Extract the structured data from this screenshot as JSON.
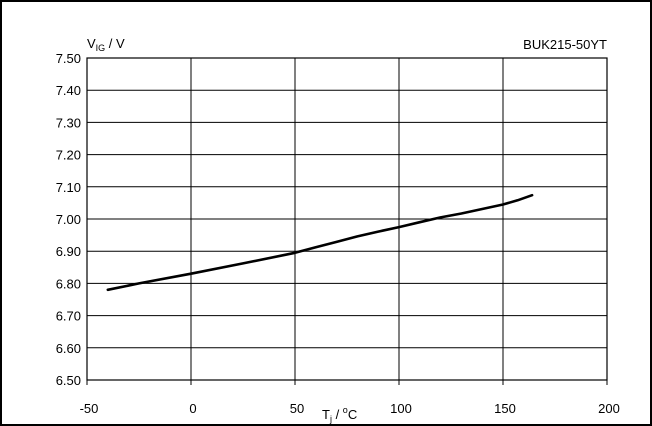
{
  "chart_data": {
    "type": "line",
    "title": "BUK215-50YT",
    "ylabel": {
      "main": "V",
      "sub": "IG",
      "rest": " / V"
    },
    "xlabel": {
      "main": "T",
      "sub": "j",
      "mid": " / ",
      "sup": "o",
      "rest": "C"
    },
    "xlim": [
      -50,
      200
    ],
    "ylim": [
      6.5,
      7.5
    ],
    "grid": true,
    "x_ticks": [
      -50,
      0,
      50,
      100,
      150,
      200
    ],
    "x_tick_labels": [
      "-50",
      "0",
      "50",
      "100",
      "150",
      "200"
    ],
    "y_ticks": [
      6.5,
      6.6,
      6.7,
      6.8,
      6.9,
      7.0,
      7.1,
      7.2,
      7.3,
      7.4,
      7.5
    ],
    "y_tick_labels": [
      "6.50",
      "6.60",
      "6.70",
      "6.80",
      "6.90",
      "7.00",
      "7.10",
      "7.20",
      "7.30",
      "7.40",
      "7.50"
    ],
    "series": [
      {
        "x": [
          -40,
          -25,
          0,
          25,
          50,
          60,
          70,
          80,
          90,
          100,
          110,
          120,
          130,
          140,
          150,
          157,
          164
        ],
        "values": [
          6.78,
          6.8,
          6.83,
          6.862,
          6.895,
          6.912,
          6.929,
          6.946,
          6.961,
          6.975,
          6.99,
          7.005,
          7.017,
          7.031,
          7.045,
          7.058,
          7.074
        ]
      }
    ]
  }
}
